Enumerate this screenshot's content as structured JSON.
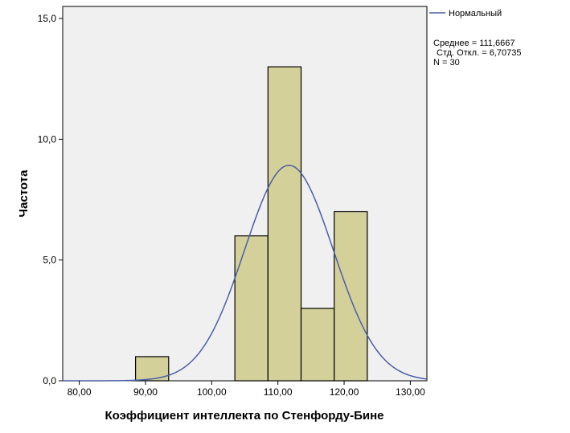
{
  "chart_data": {
    "type": "bar",
    "subtype": "histogram",
    "xlabel": "Коэффициент интеллекта по Стенфорду-Бине",
    "ylabel": "Частота",
    "xlim": [
      77.5,
      132.5
    ],
    "ylim": [
      0,
      15.5
    ],
    "x_ticks": [
      80,
      90,
      100,
      110,
      120,
      130
    ],
    "x_tick_labels": [
      "80,00",
      "90,00",
      "100,00",
      "110,00",
      "120,00",
      "130,00"
    ],
    "y_ticks": [
      0,
      5,
      10,
      15
    ],
    "y_tick_labels": [
      "0,0",
      "5,0",
      "10,0",
      "15,0"
    ],
    "bins": [
      {
        "start": 88.5,
        "end": 93.5,
        "value": 1
      },
      {
        "start": 103.5,
        "end": 108.5,
        "value": 6
      },
      {
        "start": 108.5,
        "end": 113.5,
        "value": 13
      },
      {
        "start": 113.5,
        "end": 118.5,
        "value": 3
      },
      {
        "start": 118.5,
        "end": 123.5,
        "value": 7
      }
    ],
    "bin_width": 5,
    "normal_curve": {
      "mean": 111.6667,
      "sd": 6.70735,
      "n": 30
    },
    "legend": [
      {
        "name": "Нормальный",
        "color": "#4a5ea8"
      }
    ],
    "stats": [
      "Среднее = 111,6667",
      "Стд. Откл. = 6,70735",
      "N = 30"
    ],
    "colors": {
      "bar_fill": "#d4d09a",
      "bar_stroke": "#000000",
      "plot_bg": "#f0f0f0",
      "curve": "#4a5ea8"
    },
    "grid": false,
    "legend_position": "right"
  }
}
